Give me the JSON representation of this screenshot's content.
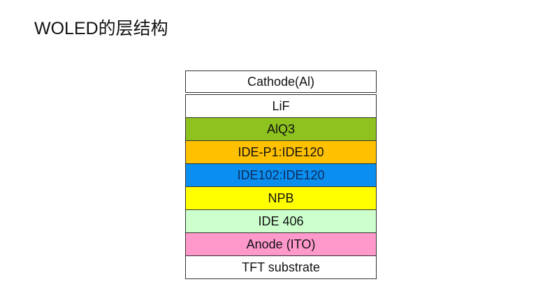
{
  "title": "WOLED的层结构",
  "layers": [
    {
      "label": "Cathode(Al)",
      "color": "#ffffff",
      "text_color": "#111111"
    },
    {
      "label": "LiF",
      "color": "#ffffff",
      "text_color": "#111111"
    },
    {
      "label": "AlQ3",
      "color": "#8dc21f",
      "text_color": "#111111"
    },
    {
      "label": "IDE-P1:IDE120",
      "color": "#ffc000",
      "text_color": "#111111"
    },
    {
      "label": "IDE102:IDE120",
      "color": "#0a8ff0",
      "text_color": "#102a5a"
    },
    {
      "label": "NPB",
      "color": "#ffff00",
      "text_color": "#111111"
    },
    {
      "label": "IDE 406",
      "color": "#ccffcc",
      "text_color": "#111111"
    },
    {
      "label": "Anode (ITO)",
      "color": "#ff99cc",
      "text_color": "#111111"
    },
    {
      "label": "TFT substrate",
      "color": "#ffffff",
      "text_color": "#111111"
    }
  ]
}
